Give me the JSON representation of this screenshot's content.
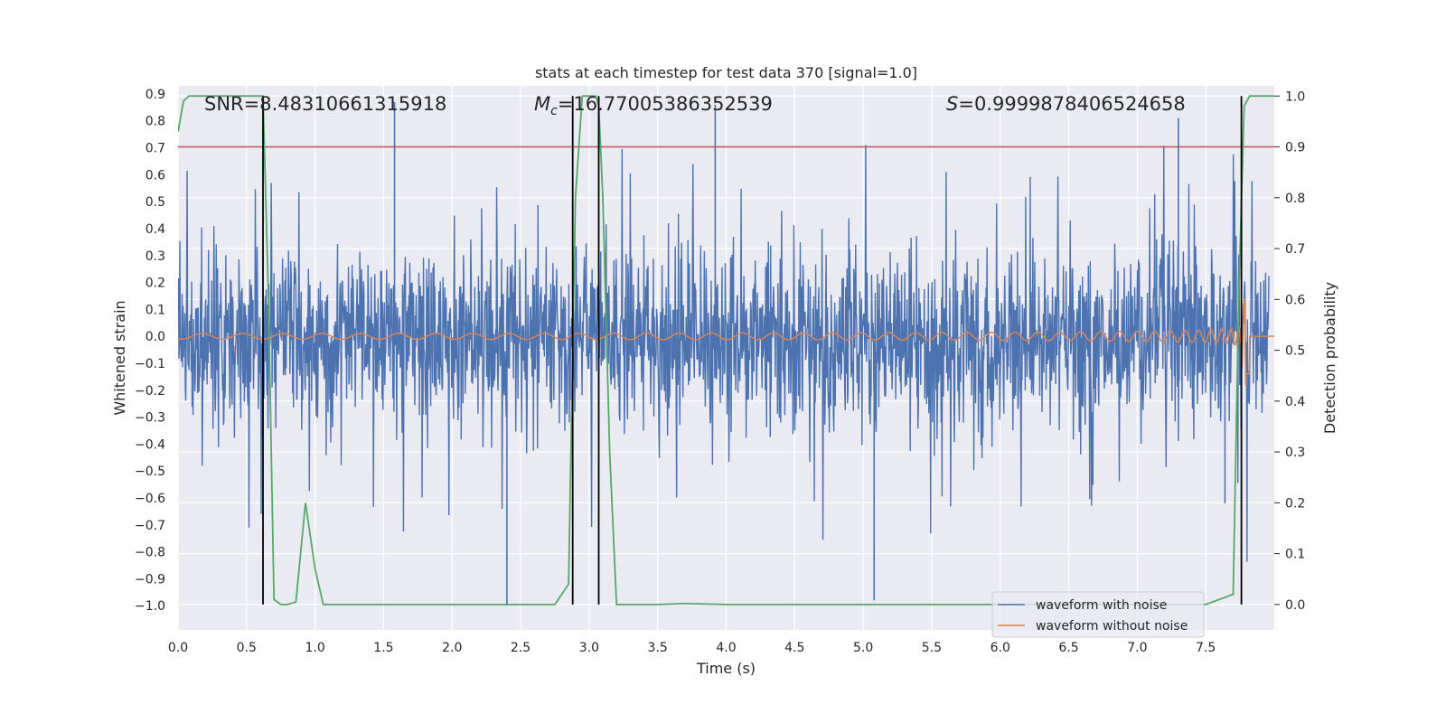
{
  "chart_data": {
    "type": "line",
    "title": "stats at each timestep for test data 370 [signal=1.0]",
    "xlabel": "Time (s)",
    "ylabel": "Whitened strain",
    "y2label": "Detection probability",
    "xlim": [
      0.0,
      8.0
    ],
    "ylim": [
      -1.09,
      0.93
    ],
    "y2lim": [
      -0.05,
      1.02
    ],
    "grid": true,
    "x_ticks": [
      0.0,
      0.5,
      1.0,
      1.5,
      2.0,
      2.5,
      3.0,
      3.5,
      4.0,
      4.5,
      5.0,
      5.5,
      6.0,
      6.5,
      7.0,
      7.5
    ],
    "x_tick_labels": [
      "0.0",
      "0.5",
      "1.0",
      "1.5",
      "2.0",
      "2.5",
      "3.0",
      "3.5",
      "4.0",
      "4.5",
      "5.0",
      "5.5",
      "6.0",
      "6.5",
      "7.0",
      "7.5"
    ],
    "y_ticks": [
      0.9,
      0.8,
      0.7,
      0.6,
      0.5,
      0.4,
      0.3,
      0.2,
      0.1,
      0.0,
      -0.1,
      -0.2,
      -0.3,
      -0.4,
      -0.5,
      -0.6,
      -0.7,
      -0.8,
      -0.9,
      -1.0
    ],
    "y_tick_labels": [
      "0.9",
      "0.8",
      "0.7",
      "0.6",
      "0.5",
      "0.4",
      "0.3",
      "0.2",
      "0.1",
      "0.0",
      "−0.1",
      "−0.2",
      "−0.3",
      "−0.4",
      "−0.5",
      "−0.6",
      "−0.7",
      "−0.8",
      "−0.9",
      "−1.0"
    ],
    "y2_ticks": [
      1.0,
      0.9,
      0.8,
      0.7,
      0.6,
      0.5,
      0.4,
      0.3,
      0.2,
      0.1,
      0.0
    ],
    "y2_tick_labels": [
      "1.0",
      "0.9",
      "0.8",
      "0.7",
      "0.6",
      "0.5",
      "0.4",
      "0.3",
      "0.2",
      "0.1",
      "0.0"
    ],
    "annotations": {
      "snr": "SNR=8.48310661315918",
      "mc_symbol": "M",
      "mc_sub": "c",
      "mc_value": "=16.77005386352539",
      "s_symbol": "S",
      "s_value": "=0.9999878406524658"
    },
    "threshold": {
      "axis": "y2",
      "value": 0.9,
      "color": "#c44e52"
    },
    "vlines": [
      0.62,
      2.88,
      3.07,
      7.76
    ],
    "series": [
      {
        "name": "waveform with noise",
        "color": "#4c72b0",
        "axis": "y",
        "description": "whitened noisy strain, roughly within ±0.4 with spikes up to 0.87 and down to -1.0",
        "amplitude_envelope": [
          -1.0,
          0.87
        ]
      },
      {
        "name": "waveform without noise",
        "color": "#dd8452",
        "axis": "y",
        "description": "chirp with amplitude growing from 0.01 to about 0.35, merging near 7.8 s"
      },
      {
        "name": "detection probability",
        "color": "#55a868",
        "axis": "y2",
        "x": [
          0.0,
          0.04,
          0.08,
          0.12,
          0.2,
          0.3,
          0.4,
          0.5,
          0.62,
          0.66,
          0.7,
          0.75,
          0.8,
          0.86,
          0.93,
          1.0,
          1.06,
          1.2,
          1.5,
          2.0,
          2.5,
          2.75,
          2.85,
          2.9,
          2.95,
          3.0,
          3.05,
          3.07,
          3.1,
          3.15,
          3.2,
          3.3,
          3.5,
          3.7,
          4.0,
          5.0,
          6.0,
          7.0,
          7.5,
          7.7,
          7.74,
          7.78,
          7.82,
          7.9,
          8.0
        ],
        "values": [
          0.93,
          0.99,
          1.0,
          1.0,
          1.0,
          1.0,
          1.0,
          1.0,
          1.0,
          0.6,
          0.01,
          0.0,
          0.0,
          0.005,
          0.2,
          0.07,
          0.0,
          0.0,
          0.0,
          0.0,
          0.0,
          0.0,
          0.04,
          0.8,
          1.0,
          1.0,
          1.0,
          0.98,
          0.8,
          0.3,
          0.0,
          0.0,
          0.0,
          0.002,
          0.0,
          0.0,
          0.0,
          0.0,
          0.0,
          0.02,
          0.6,
          0.98,
          1.0,
          1.0,
          1.0
        ]
      }
    ],
    "legend": {
      "location": "lower-right",
      "entries": [
        "waveform with noise",
        "waveform without noise"
      ]
    }
  }
}
